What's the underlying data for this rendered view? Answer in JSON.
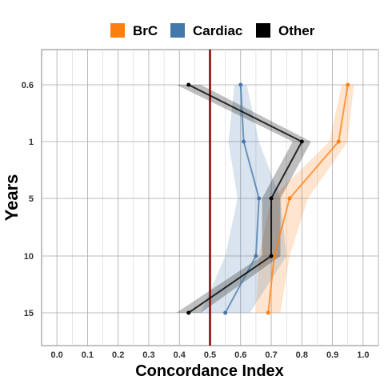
{
  "chart_data": {
    "type": "line",
    "xlabel": "Concordance Index",
    "ylabel": "Years",
    "xlim": [
      -0.05,
      1.05
    ],
    "x_ticks": [
      "0.0",
      "0.1",
      "0.2",
      "0.3",
      "0.4",
      "0.5",
      "0.6",
      "0.7",
      "0.8",
      "0.9",
      "1.0"
    ],
    "categories": [
      "0.6",
      "1",
      "5",
      "10",
      "15"
    ],
    "reference_line": {
      "x": 0.5,
      "color": "#8b0000"
    },
    "legend_position": "top",
    "grid": true,
    "series": [
      {
        "name": "BrC",
        "color": "#ff7f0e",
        "values": [
          0.95,
          0.92,
          0.76,
          0.71,
          0.69
        ],
        "lower": [
          0.93,
          0.89,
          0.7,
          0.66,
          0.65
        ],
        "upper": [
          0.97,
          0.95,
          0.82,
          0.76,
          0.73
        ]
      },
      {
        "name": "Cardiac",
        "color": "#4477aa",
        "values": [
          0.6,
          0.61,
          0.66,
          0.65,
          0.55
        ],
        "lower": [
          0.58,
          0.56,
          0.59,
          0.55,
          0.47
        ],
        "upper": [
          0.62,
          0.66,
          0.73,
          0.75,
          0.63
        ]
      },
      {
        "name": "Other",
        "color": "#000000",
        "values": [
          0.43,
          0.8,
          0.7,
          0.7,
          0.43
        ],
        "lower": [
          0.39,
          0.77,
          0.67,
          0.67,
          0.39
        ],
        "upper": [
          0.47,
          0.83,
          0.73,
          0.73,
          0.47
        ]
      }
    ]
  }
}
